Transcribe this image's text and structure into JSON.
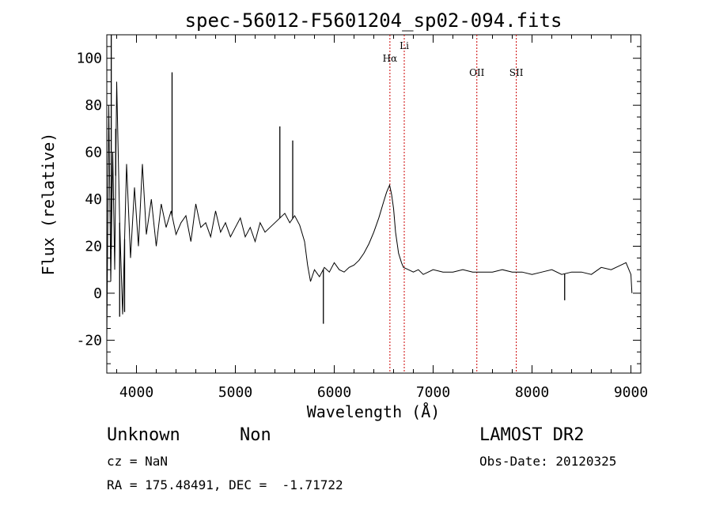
{
  "chart_data": {
    "type": "line",
    "title": "spec-56012-F5601204_sp02-094.fits",
    "xlabel": "Wavelength (Å)",
    "ylabel": "Flux (relative)",
    "xlim": [
      3700,
      9100
    ],
    "ylim": [
      -34,
      110
    ],
    "xticks": [
      4000,
      5000,
      6000,
      7000,
      8000,
      9000
    ],
    "yticks": [
      -20,
      0,
      20,
      40,
      60,
      80,
      100
    ],
    "grid": false,
    "line_color": "#000000",
    "marker_color": "#cc0000",
    "line_markers": [
      {
        "label": "Hα",
        "x": 6563
      },
      {
        "label": "Li",
        "x": 6708
      },
      {
        "label": "OII",
        "x": 7442
      },
      {
        "label": "SII",
        "x": 7841
      }
    ],
    "series": [
      {
        "x": [
          3700,
          3720,
          3740,
          3760,
          3780,
          3800,
          3830,
          3860,
          3900,
          3940,
          3980,
          4020,
          4060,
          4100,
          4150,
          4200,
          4250,
          4300,
          4350,
          4400,
          4450,
          4500,
          4550,
          4600,
          4650,
          4700,
          4750,
          4800,
          4850,
          4900,
          4950,
          5000,
          5050,
          5100,
          5150,
          5200,
          5250,
          5300,
          5350,
          5400,
          5450,
          5500,
          5550,
          5600,
          5650,
          5700,
          5730,
          5760,
          5800,
          5850,
          5900,
          5950,
          6000,
          6050,
          6100,
          6150,
          6200,
          6250,
          6300,
          6350,
          6400,
          6450,
          6500,
          6530,
          6560,
          6580,
          6600,
          6620,
          6650,
          6680,
          6700,
          6750,
          6800,
          6850,
          6900,
          6950,
          7000,
          7100,
          7200,
          7300,
          7400,
          7500,
          7600,
          7700,
          7800,
          7900,
          8000,
          8100,
          8200,
          8300,
          8400,
          8500,
          8600,
          8700,
          8800,
          8900,
          8950,
          9000,
          9010
        ],
        "y": [
          -20,
          80,
          5,
          60,
          10,
          90,
          30,
          -9,
          55,
          15,
          45,
          20,
          55,
          25,
          40,
          20,
          38,
          28,
          35,
          25,
          30,
          33,
          22,
          38,
          28,
          30,
          24,
          35,
          26,
          30,
          24,
          28,
          32,
          24,
          28,
          22,
          30,
          26,
          28,
          30,
          32,
          34,
          30,
          33,
          29,
          22,
          12,
          5,
          10,
          7,
          11,
          9,
          13,
          10,
          9,
          11,
          12,
          14,
          17,
          21,
          26,
          32,
          39,
          43,
          46,
          42,
          36,
          26,
          17,
          13,
          11,
          10,
          9,
          10,
          8,
          9,
          10,
          9,
          9,
          10,
          9,
          9,
          9,
          10,
          9,
          9,
          8,
          9,
          10,
          8,
          9,
          9,
          8,
          11,
          10,
          12,
          13,
          8,
          0
        ]
      }
    ],
    "spikes": [
      {
        "x": 3745,
        "y": 110
      },
      {
        "x": 3790,
        "y": 70
      },
      {
        "x": 3830,
        "y": -10
      },
      {
        "x": 3880,
        "y": -8
      },
      {
        "x": 4360,
        "y": 94
      },
      {
        "x": 5450,
        "y": 71
      },
      {
        "x": 5580,
        "y": 65
      },
      {
        "x": 5890,
        "y": -13
      },
      {
        "x": 8330,
        "y": -3
      }
    ]
  },
  "info": {
    "object_class": "Unknown",
    "object_subclass": "Non",
    "survey": "LAMOST DR2",
    "cz": "cz = NaN",
    "obs_date": "Obs-Date: 20120325",
    "coords": "RA = 175.48491, DEC =  -1.71722"
  }
}
